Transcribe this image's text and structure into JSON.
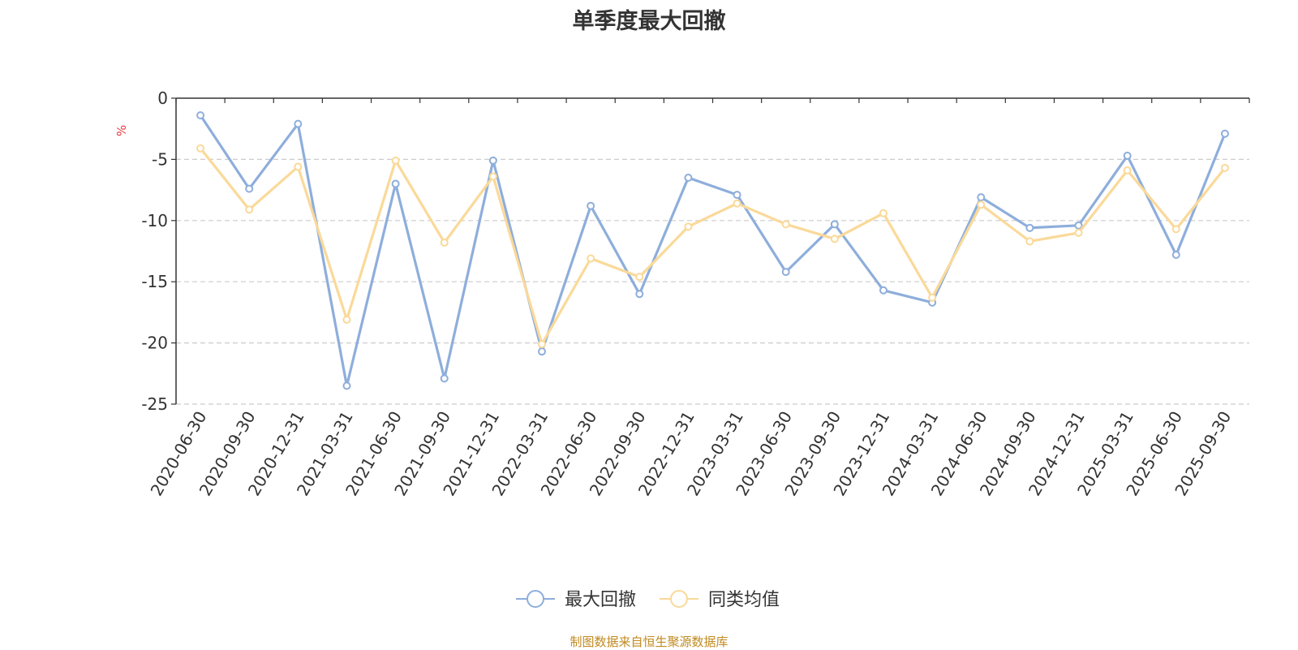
{
  "chart_data": {
    "type": "line",
    "title": "单季度最大回撤",
    "ylabel": "%",
    "xlabel": "",
    "ylim": [
      -25,
      0
    ],
    "yticks": [
      0,
      -5,
      -10,
      -15,
      -20,
      -25
    ],
    "grid": true,
    "legend_position": "bottom",
    "categories": [
      "2020-06-30",
      "2020-09-30",
      "2020-12-31",
      "2021-03-31",
      "2021-06-30",
      "2021-09-30",
      "2021-12-31",
      "2022-03-31",
      "2022-06-30",
      "2022-09-30",
      "2022-12-31",
      "2023-03-31",
      "2023-06-30",
      "2023-09-30",
      "2023-12-31",
      "2024-03-31",
      "2024-06-30",
      "2024-09-30",
      "2024-12-31",
      "2025-03-31",
      "2025-06-30",
      "2025-09-30"
    ],
    "series": [
      {
        "name": "最大回撤",
        "color": "#8eaedb",
        "values": [
          -1.4,
          -7.4,
          -2.1,
          -23.5,
          -7.0,
          -22.9,
          -5.1,
          -20.7,
          -8.8,
          -16.0,
          -6.5,
          -7.9,
          -14.2,
          -10.3,
          -15.7,
          -16.7,
          -8.1,
          -10.6,
          -10.4,
          -4.7,
          -12.8,
          -2.9
        ]
      },
      {
        "name": "同类均值",
        "color": "#fad999",
        "values": [
          -4.1,
          -9.1,
          -5.6,
          -18.1,
          -5.1,
          -11.8,
          -6.4,
          -20.1,
          -13.1,
          -14.6,
          -10.5,
          -8.6,
          -10.3,
          -11.5,
          -9.4,
          -16.3,
          -8.7,
          -11.7,
          -11.0,
          -5.9,
          -10.7,
          -5.7
        ]
      }
    ]
  },
  "source_note": "制图数据来自恒生聚源数据库"
}
